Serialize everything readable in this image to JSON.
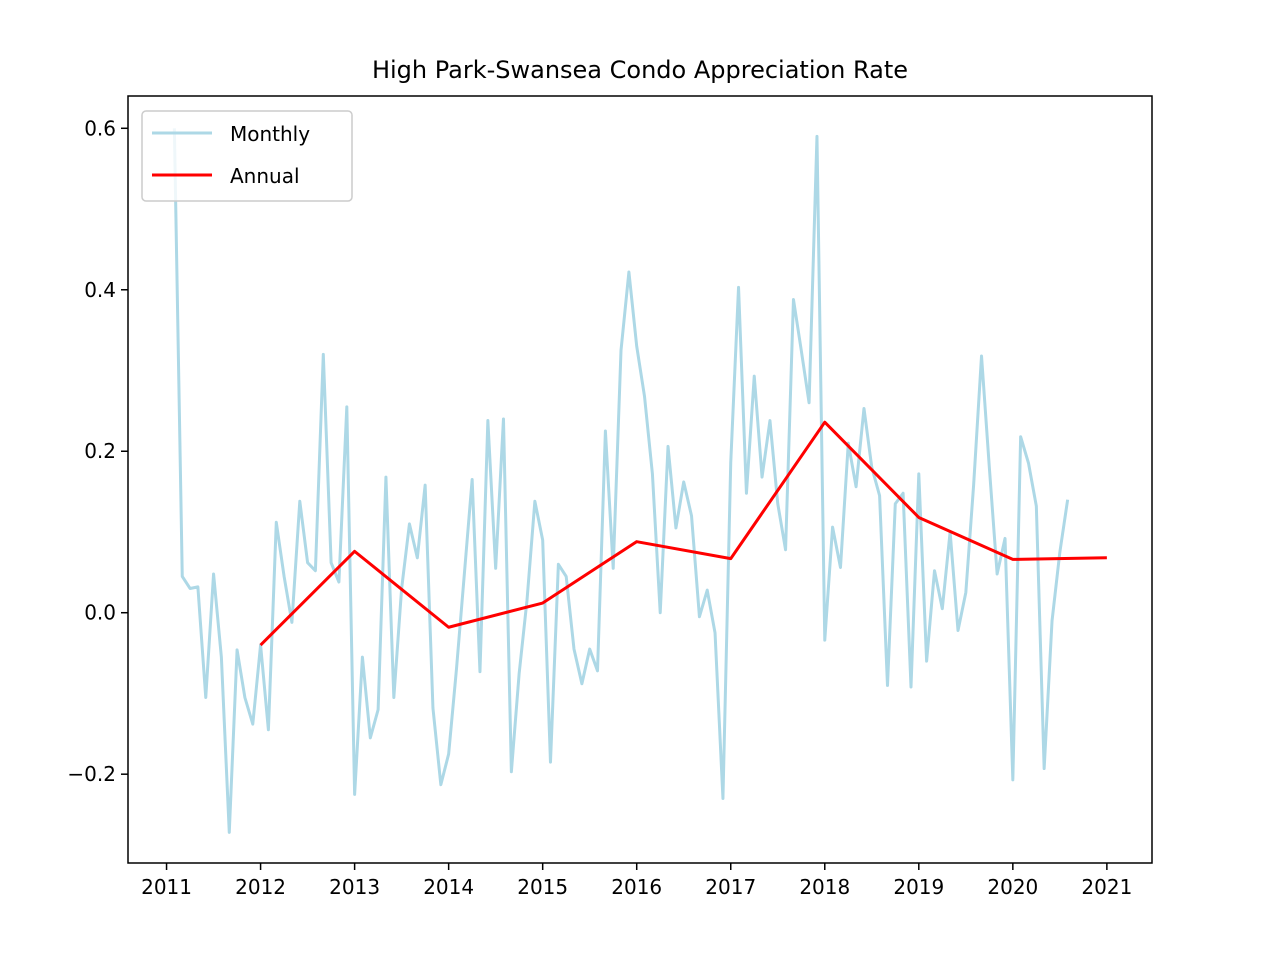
{
  "chart_data": {
    "type": "line",
    "title": "High Park-Swansea Condo Appreciation Rate",
    "xlabel": "",
    "ylabel": "",
    "xlim": [
      2010.59,
      2021.48
    ],
    "ylim": [
      -0.31,
      0.64
    ],
    "x_ticks": [
      2011,
      2012,
      2013,
      2014,
      2015,
      2016,
      2017,
      2018,
      2019,
      2020,
      2021
    ],
    "x_tick_labels": [
      "2011",
      "2012",
      "2013",
      "2014",
      "2015",
      "2016",
      "2017",
      "2018",
      "2019",
      "2020",
      "2021"
    ],
    "y_ticks": [
      -0.2,
      0.0,
      0.2,
      0.4,
      0.6
    ],
    "y_tick_labels": [
      "−0.2",
      "0.0",
      "0.2",
      "0.4",
      "0.6"
    ],
    "grid": false,
    "legend_position": "top-left",
    "series": [
      {
        "name": "Monthly",
        "color": "#add8e6",
        "x": [
          2011.083,
          2011.167,
          2011.25,
          2011.333,
          2011.417,
          2011.5,
          2011.583,
          2011.667,
          2011.75,
          2011.833,
          2011.917,
          2012.0,
          2012.083,
          2012.167,
          2012.25,
          2012.333,
          2012.417,
          2012.5,
          2012.583,
          2012.667,
          2012.75,
          2012.833,
          2012.917,
          2013.0,
          2013.083,
          2013.167,
          2013.25,
          2013.333,
          2013.417,
          2013.5,
          2013.583,
          2013.667,
          2013.75,
          2013.833,
          2013.917,
          2014.0,
          2014.083,
          2014.167,
          2014.25,
          2014.333,
          2014.417,
          2014.5,
          2014.583,
          2014.667,
          2014.75,
          2014.833,
          2014.917,
          2015.0,
          2015.083,
          2015.167,
          2015.25,
          2015.333,
          2015.417,
          2015.5,
          2015.583,
          2015.667,
          2015.75,
          2015.833,
          2015.917,
          2016.0,
          2016.083,
          2016.167,
          2016.25,
          2016.333,
          2016.417,
          2016.5,
          2016.583,
          2016.667,
          2016.75,
          2016.833,
          2016.917,
          2017.0,
          2017.083,
          2017.167,
          2017.25,
          2017.333,
          2017.417,
          2017.5,
          2017.583,
          2017.667,
          2017.75,
          2017.833,
          2017.917,
          2018.0,
          2018.083,
          2018.167,
          2018.25,
          2018.333,
          2018.417,
          2018.5,
          2018.583,
          2018.667,
          2018.75,
          2018.833,
          2018.917,
          2019.0,
          2019.083,
          2019.167,
          2019.25,
          2019.333,
          2019.417,
          2019.5,
          2019.583,
          2019.667,
          2019.75,
          2019.833,
          2019.917,
          2020.0,
          2020.083,
          2020.167,
          2020.25,
          2020.333,
          2020.417,
          2020.5,
          2020.583
        ],
        "values": [
          0.6,
          0.045,
          0.03,
          0.032,
          -0.105,
          0.048,
          -0.055,
          -0.272,
          -0.046,
          -0.105,
          -0.138,
          -0.04,
          -0.145,
          0.112,
          0.045,
          -0.012,
          0.138,
          0.062,
          0.052,
          0.32,
          0.062,
          0.038,
          0.255,
          -0.225,
          -0.055,
          -0.155,
          -0.12,
          0.168,
          -0.105,
          0.03,
          0.11,
          0.068,
          0.158,
          -0.118,
          -0.213,
          -0.175,
          -0.07,
          0.048,
          0.165,
          -0.073,
          0.238,
          0.055,
          0.24,
          -0.197,
          -0.075,
          0.015,
          0.138,
          0.09,
          -0.185,
          0.06,
          0.045,
          -0.045,
          -0.088,
          -0.045,
          -0.072,
          0.225,
          0.055,
          0.325,
          0.422,
          0.33,
          0.268,
          0.172,
          0.0,
          0.206,
          0.105,
          0.162,
          0.12,
          -0.005,
          0.028,
          -0.025,
          -0.23,
          0.186,
          0.403,
          0.148,
          0.293,
          0.168,
          0.238,
          0.135,
          0.078,
          0.388,
          0.325,
          0.26,
          0.59,
          -0.034,
          0.106,
          0.056,
          0.21,
          0.156,
          0.253,
          0.18,
          0.145,
          -0.09,
          0.135,
          0.148,
          -0.092,
          0.172,
          -0.06,
          0.052,
          0.005,
          0.1,
          -0.022,
          0.025,
          0.158,
          0.318,
          0.18,
          0.048,
          0.092,
          -0.207,
          0.218,
          0.185,
          0.132,
          -0.193,
          -0.01,
          0.075,
          0.14
        ]
      },
      {
        "name": "Annual",
        "color": "#ff0000",
        "x": [
          2012,
          2013,
          2014,
          2015,
          2016,
          2017,
          2018,
          2019,
          2020,
          2021
        ],
        "values": [
          -0.04,
          0.076,
          -0.018,
          0.012,
          0.088,
          0.067,
          0.236,
          0.118,
          0.066,
          0.068
        ]
      }
    ]
  }
}
